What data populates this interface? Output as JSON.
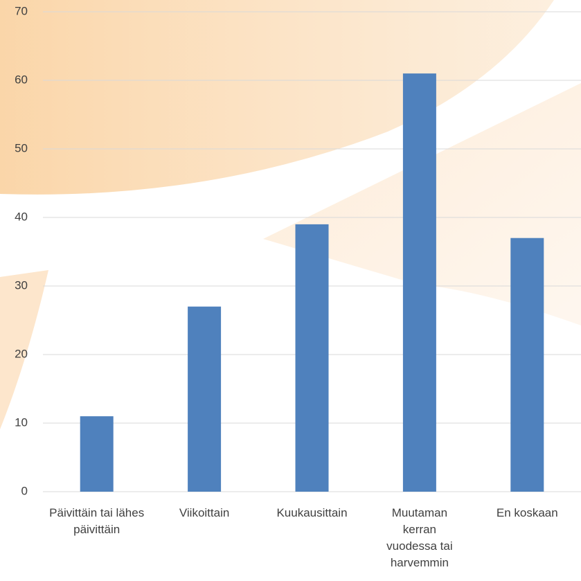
{
  "chart_data": {
    "type": "bar",
    "categories": [
      "Päivittäin tai lähes päivittäin",
      "Viikoittain",
      "Kuukausittain",
      "Muutaman kerran vuodessa tai harvemmin",
      "En koskaan"
    ],
    "values": [
      11,
      27,
      39,
      61,
      37
    ],
    "color": "#4f81bd",
    "ylim": [
      0,
      70
    ],
    "yticks": [
      0,
      10,
      20,
      30,
      40,
      50,
      60,
      70
    ],
    "grid": true
  }
}
